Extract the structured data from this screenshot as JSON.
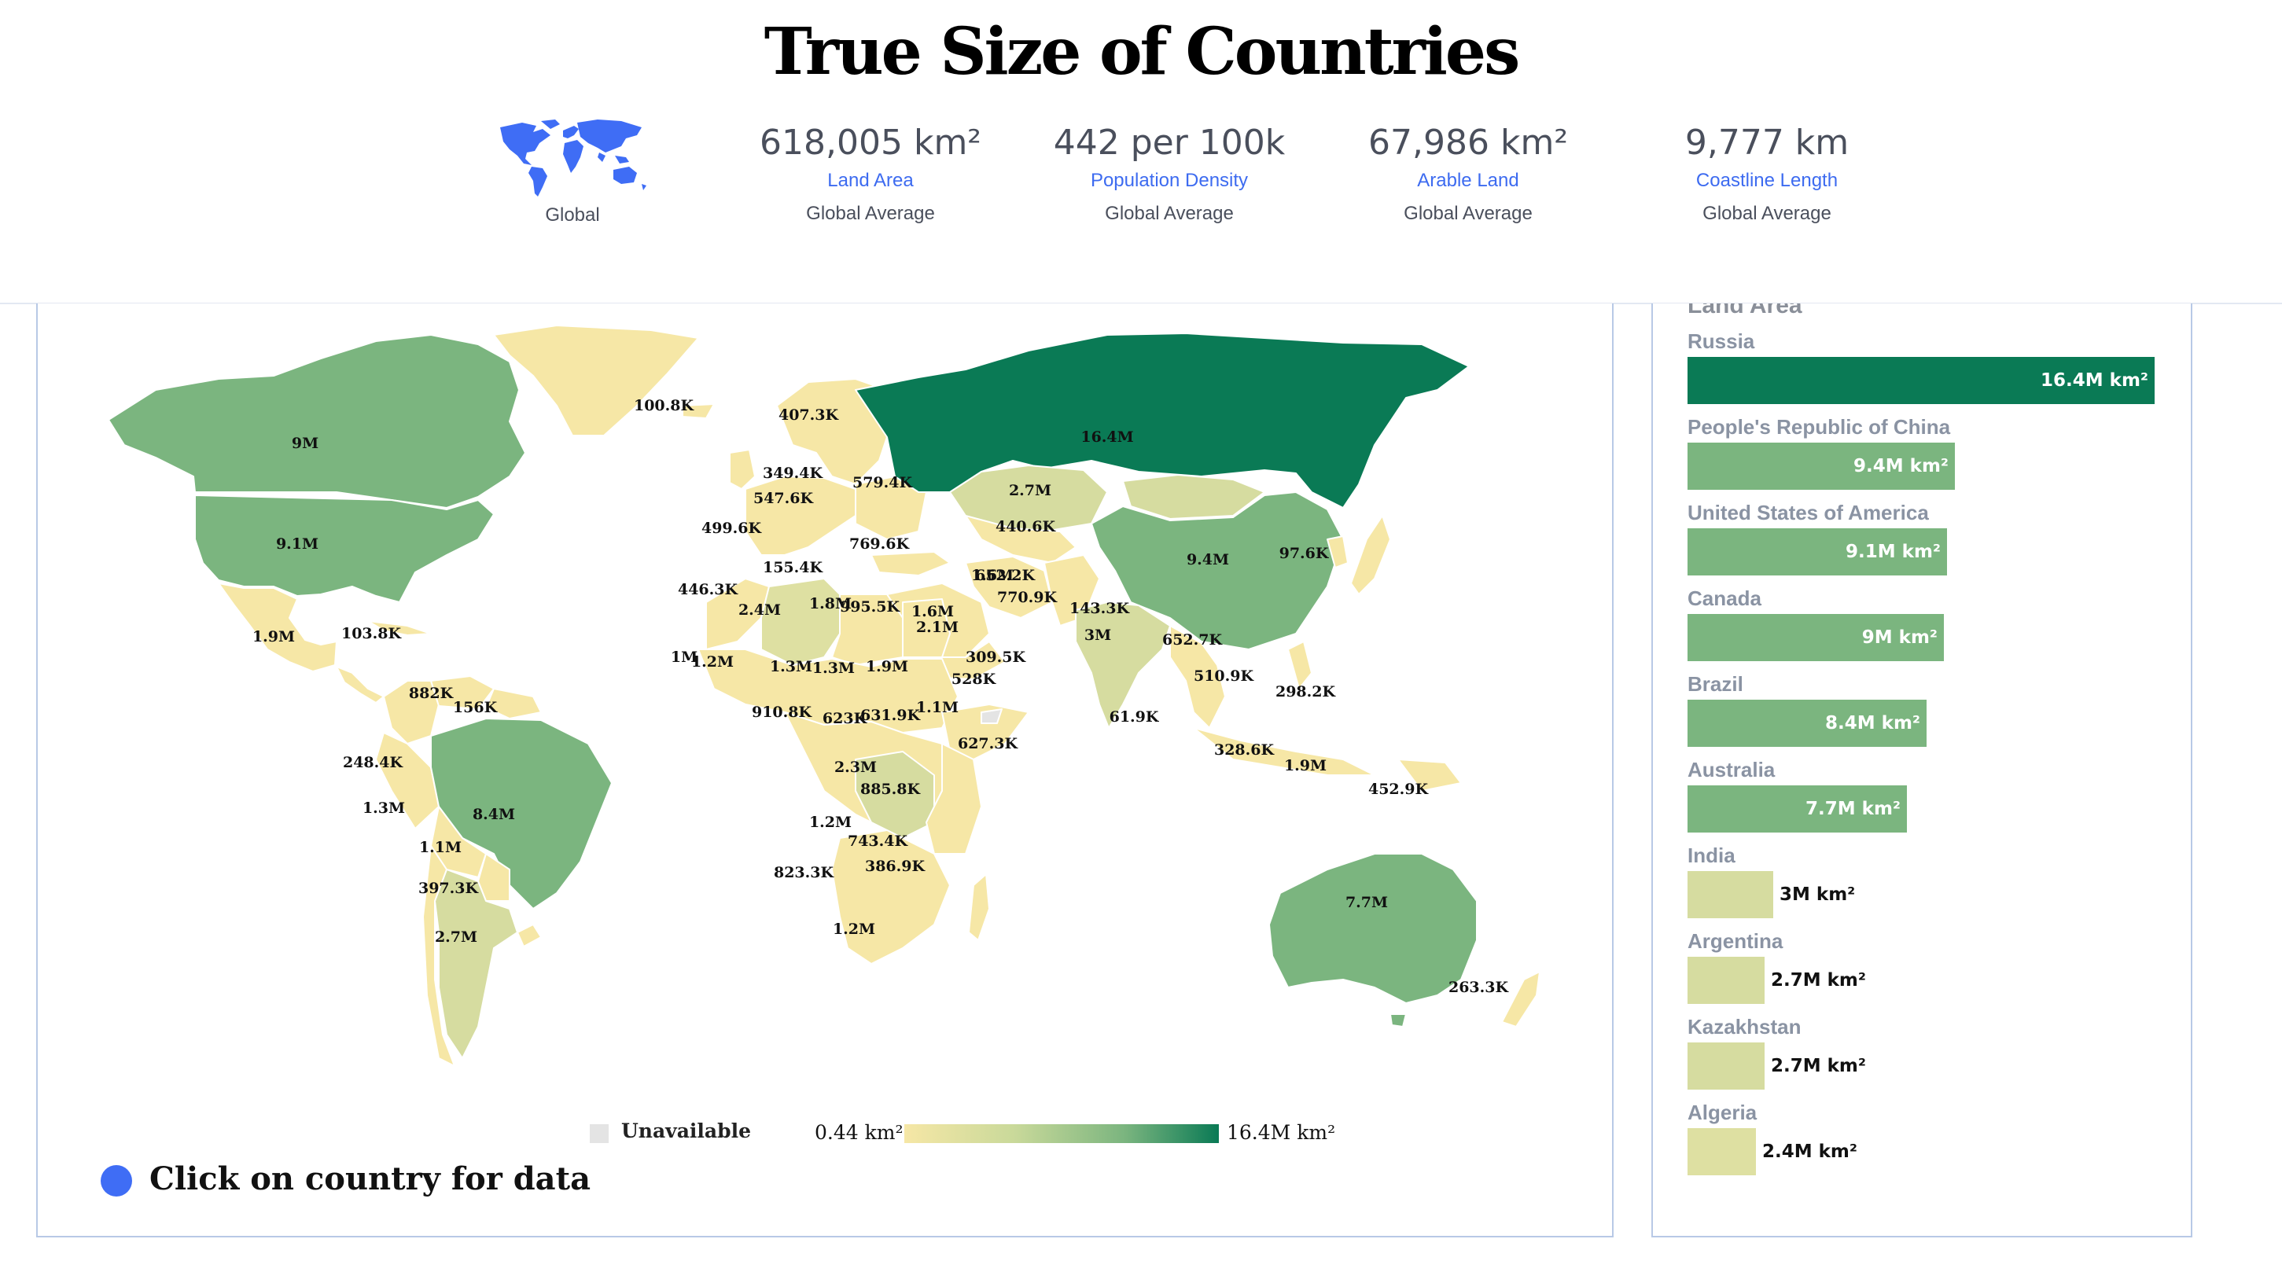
{
  "title": "True Size of Countries",
  "global": {
    "label": "Global"
  },
  "stats": [
    {
      "value": "618,005 km²",
      "metric": "Land Area",
      "caption": "Global Average"
    },
    {
      "value": "442 per 100k",
      "metric": "Population Density",
      "caption": "Global Average"
    },
    {
      "value": "67,986 km²",
      "metric": "Arable Land",
      "caption": "Global Average"
    },
    {
      "value": "9,777 km",
      "metric": "Coastline Length",
      "caption": "Global Average"
    }
  ],
  "map": {
    "legend": {
      "unavailable": "Unavailable",
      "min": "0.44 km²",
      "max": "16.4M km²"
    },
    "hint": "Click on country for data",
    "colors": {
      "low": "#f6e7a6",
      "mid": "#d3dc9d",
      "high": "#7bb57f",
      "max": "#0a7a55",
      "unavailable": "#e4e4e4",
      "border": "#ffffff"
    },
    "labels": [
      "16.4M",
      "9M",
      "9.1M",
      "100.8K",
      "407.3K",
      "349.4K",
      "547.6K",
      "579.4K",
      "499.6K",
      "769.6K",
      "2.7M",
      "440.6K",
      "1.6M",
      "9.4M",
      "97.6K",
      "1.9M",
      "103.8K",
      "155.4K",
      "446.3K",
      "2.4M",
      "1.8M",
      "995.5K",
      "1.6M",
      "652.2K",
      "770.9K",
      "2.1M",
      "143.3K",
      "3M",
      "652.7K",
      "309.5K",
      "1M",
      "1.2M",
      "1.3M",
      "1.3M",
      "1.9M",
      "528K",
      "510.9K",
      "298.2K",
      "910.8K",
      "623K",
      "631.9K",
      "1.1M",
      "882K",
      "156K",
      "61.9K",
      "627.3K",
      "328.6K",
      "248.4K",
      "2.3M",
      "1.9M",
      "452.9K",
      "1.3M",
      "8.4M",
      "885.8K",
      "1.2M",
      "743.4K",
      "1.1M",
      "823.3K",
      "386.9K",
      "397.3K",
      "7.7M",
      "1.2M",
      "2.7M",
      "263.3K"
    ]
  },
  "ranking": {
    "heading": "Land Area",
    "items": [
      {
        "name": "Russia",
        "value": "16.4M km²",
        "num": 16.4,
        "color": "#0a7a55"
      },
      {
        "name": "People's Republic of China",
        "value": "9.4M km²",
        "num": 9.4,
        "color": "#7bb57f"
      },
      {
        "name": "United States of America",
        "value": "9.1M km²",
        "num": 9.1,
        "color": "#7bb57f"
      },
      {
        "name": "Canada",
        "value": "9M km²",
        "num": 9.0,
        "color": "#7bb57f"
      },
      {
        "name": "Brazil",
        "value": "8.4M km²",
        "num": 8.4,
        "color": "#7bb57f"
      },
      {
        "name": "Australia",
        "value": "7.7M km²",
        "num": 7.7,
        "color": "#7bb57f"
      },
      {
        "name": "India",
        "value": "3M km²",
        "num": 3.0,
        "color": "#d6dca0"
      },
      {
        "name": "Argentina",
        "value": "2.7M km²",
        "num": 2.7,
        "color": "#d6dca0"
      },
      {
        "name": "Kazakhstan",
        "value": "2.7M km²",
        "num": 2.7,
        "color": "#d6dca0"
      },
      {
        "name": "Algeria",
        "value": "2.4M km²",
        "num": 2.4,
        "color": "#dee0a2"
      }
    ]
  }
}
